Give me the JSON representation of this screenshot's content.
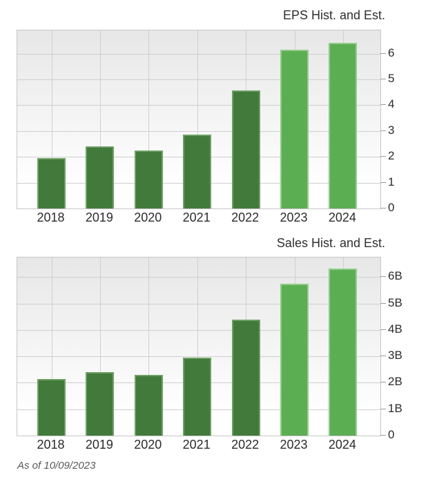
{
  "footer": {
    "as_of": "As of 10/09/2023"
  },
  "colors": {
    "historical_bar": "#417a3b",
    "historical_bar_edge": "#70a066",
    "estimate_bar": "#5cae53",
    "estimate_bar_edge": "#93cc8a",
    "grid_line": "#cfcfcf",
    "plot_border": "#c6c6c6",
    "plot_bg_top": "#e7e7e7",
    "plot_bg_bottom": "#ffffff",
    "axis_text": "#2b2b2b",
    "title_text": "#2e2e2e",
    "footer_text": "#58595b",
    "tick_mark": "#9a9a9a"
  },
  "chart_data": [
    {
      "type": "bar",
      "title": "EPS Hist. and Est.",
      "categories": [
        "2018",
        "2019",
        "2020",
        "2021",
        "2022",
        "2023",
        "2024"
      ],
      "values": [
        1.95,
        2.4,
        2.25,
        2.87,
        4.57,
        6.14,
        6.43
      ],
      "bar_kinds": [
        "hist",
        "hist",
        "hist",
        "hist",
        "hist",
        "est",
        "est"
      ],
      "series_note": "dark green = historical (2018-2022), light green = estimates (2023-2024)",
      "xlabel": "",
      "ylabel": "",
      "ylim": [
        0,
        6.9
      ],
      "yticks": [
        0,
        1,
        2,
        3,
        4,
        5,
        6
      ],
      "ytick_labels": [
        "0",
        "1",
        "2",
        "3",
        "4",
        "5",
        "6"
      ],
      "grid": true,
      "legend": "none",
      "yaxis_side": "right"
    },
    {
      "type": "bar",
      "title": "Sales Hist. and Est.",
      "categories": [
        "2018",
        "2019",
        "2020",
        "2021",
        "2022",
        "2023",
        "2024"
      ],
      "values": [
        2.15,
        2.4,
        2.3,
        2.95,
        4.39,
        5.76,
        6.31
      ],
      "values_unit": "B",
      "bar_kinds": [
        "hist",
        "hist",
        "hist",
        "hist",
        "hist",
        "est",
        "est"
      ],
      "series_note": "dark green = historical (2018-2022), light green = estimates (2023-2024)",
      "xlabel": "",
      "ylabel": "",
      "ylim": [
        0,
        6.74
      ],
      "yticks": [
        0,
        1,
        2,
        3,
        4,
        5,
        6
      ],
      "ytick_labels": [
        "0",
        "1B",
        "2B",
        "3B",
        "4B",
        "5B",
        "6B"
      ],
      "grid": true,
      "legend": "none",
      "yaxis_side": "right"
    }
  ]
}
